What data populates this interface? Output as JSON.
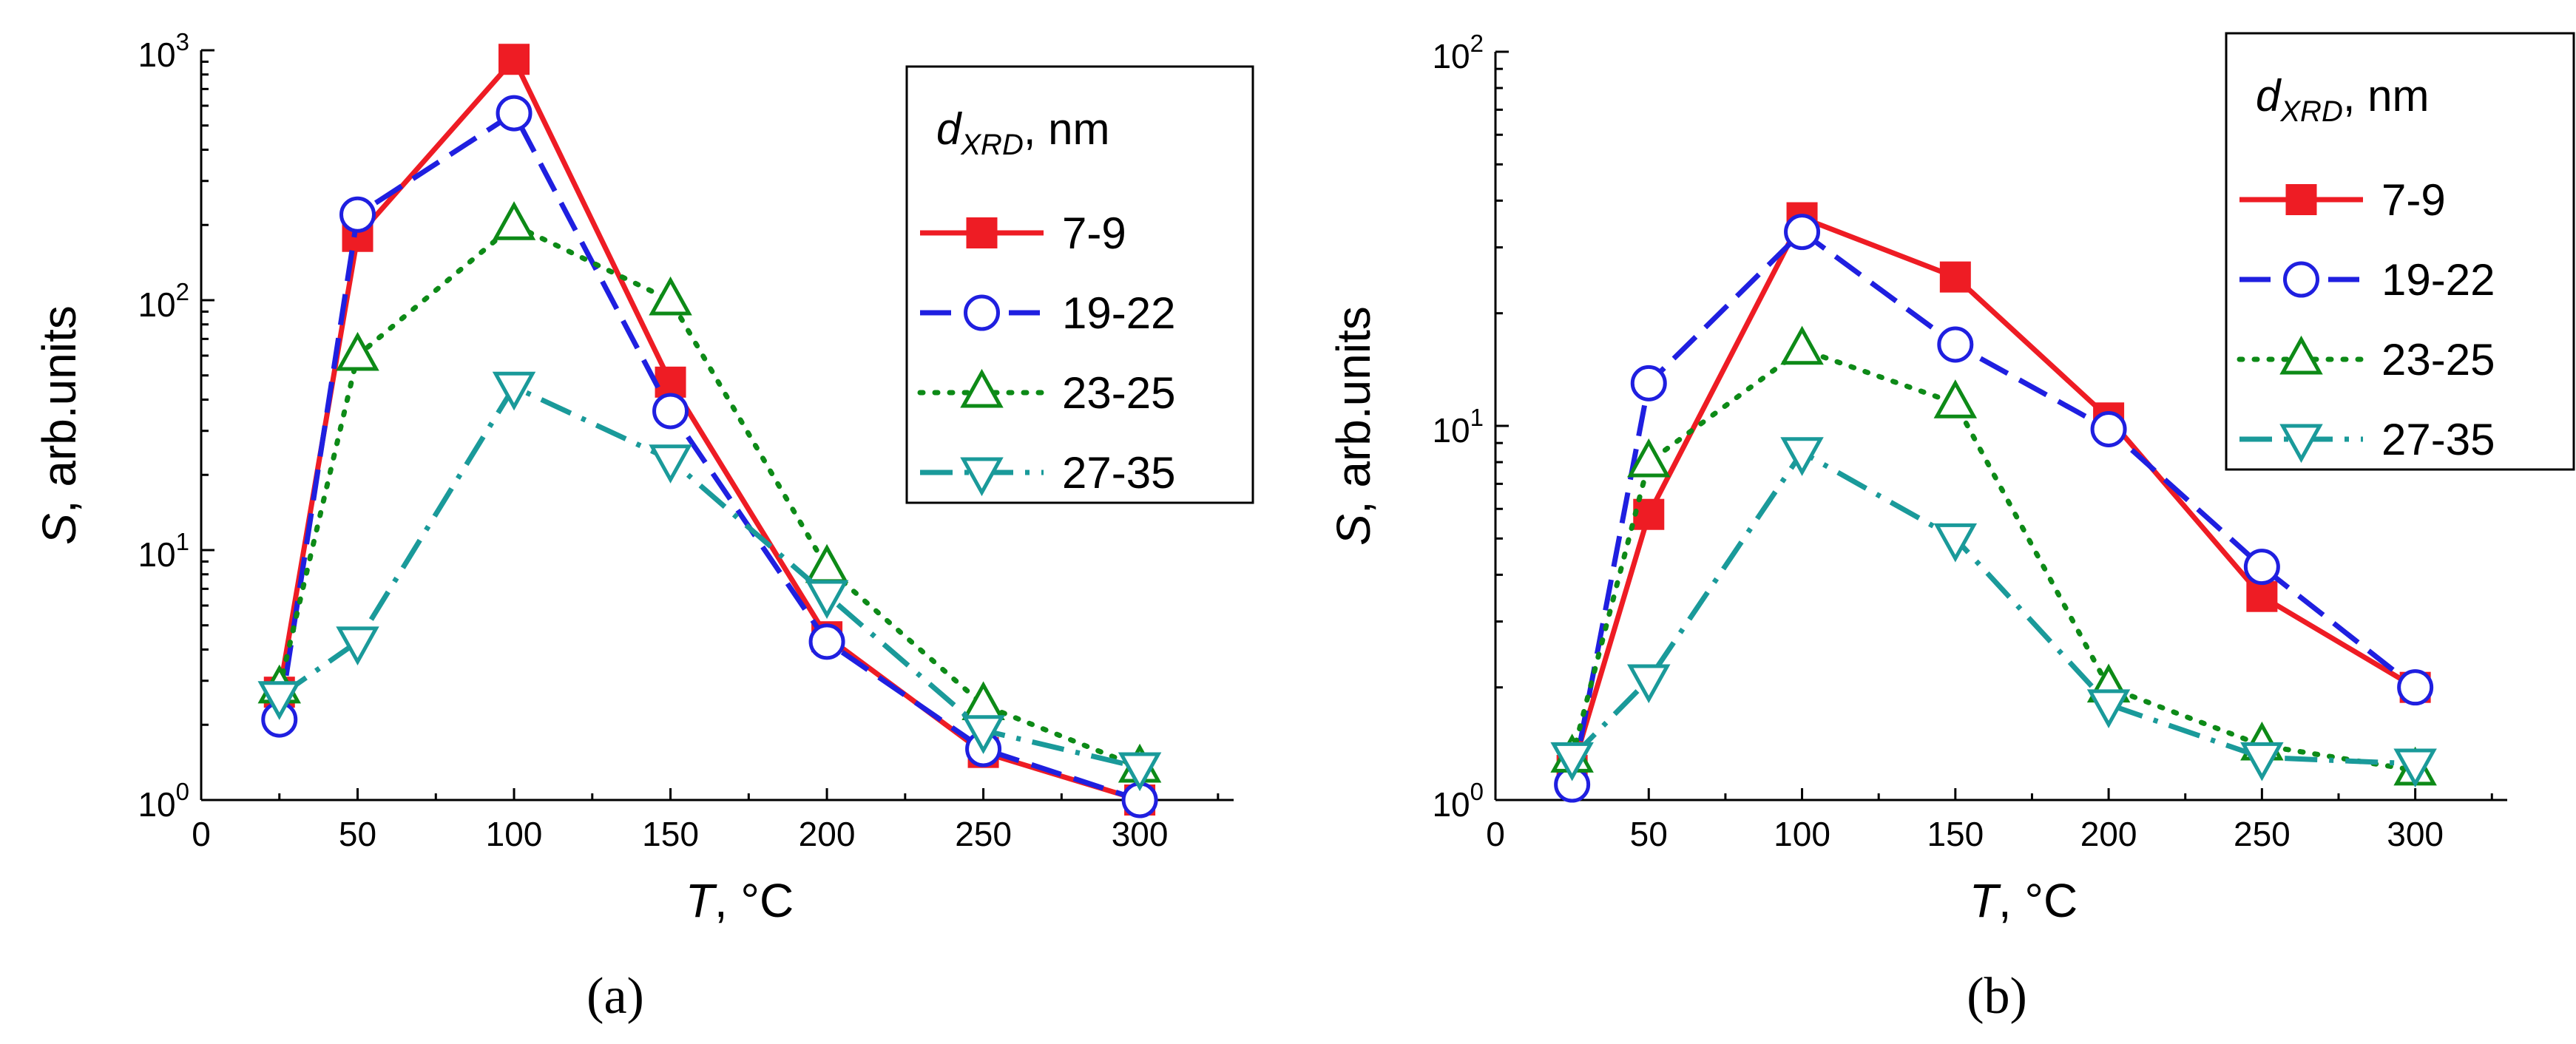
{
  "chart_data": [
    {
      "type": "line",
      "panel_label": "(a)",
      "x": [
        25,
        50,
        100,
        150,
        200,
        250,
        300
      ],
      "xlim": [
        0,
        330
      ],
      "xticks": [
        0,
        50,
        100,
        150,
        200,
        250,
        300
      ],
      "ylim": [
        1,
        1000
      ],
      "yscale": "log",
      "yticks": [
        {
          "value": 1,
          "base": "10",
          "exp": "0"
        },
        {
          "value": 10,
          "base": "10",
          "exp": "1"
        },
        {
          "value": 100,
          "base": "10",
          "exp": "2"
        },
        {
          "value": 1000,
          "base": "10",
          "exp": "3"
        }
      ],
      "xlabel": {
        "var": "T",
        "unit": ", °C"
      },
      "ylabel": {
        "var": "S",
        "unit": ", arb.units"
      },
      "legend": {
        "title_var": "d",
        "title_sub": "XRD",
        "title_unit": ", nm",
        "placement": "top-right"
      },
      "series": [
        {
          "name": "7-9",
          "color": "#ee1c24",
          "marker": "square",
          "dash": "solid",
          "values": [
            2.7,
            180,
            920,
            47,
            4.5,
            1.55,
            1.0
          ]
        },
        {
          "name": "19-22",
          "color": "#1f1fe0",
          "marker": "circle",
          "dash": "dash",
          "values": [
            2.1,
            220,
            560,
            36,
            4.3,
            1.6,
            1.0
          ]
        },
        {
          "name": "23-25",
          "color": "#0d8a17",
          "marker": "triangle-up",
          "dash": "dot",
          "values": [
            2.8,
            60,
            200,
            100,
            8.5,
            2.4,
            1.35
          ]
        },
        {
          "name": "27-35",
          "color": "#1a9a9a",
          "marker": "triangle-down",
          "dash": "dashdot",
          "values": [
            2.6,
            4.3,
            45,
            23,
            6.6,
            1.9,
            1.35
          ]
        }
      ]
    },
    {
      "type": "line",
      "panel_label": "(b)",
      "x": [
        25,
        50,
        100,
        150,
        200,
        250,
        300
      ],
      "xlim": [
        0,
        330
      ],
      "xticks": [
        0,
        50,
        100,
        150,
        200,
        250,
        300
      ],
      "ylim": [
        1,
        100
      ],
      "yscale": "log",
      "yticks": [
        {
          "value": 1,
          "base": "10",
          "exp": "0"
        },
        {
          "value": 10,
          "base": "10",
          "exp": "1"
        },
        {
          "value": 100,
          "base": "10",
          "exp": "2"
        }
      ],
      "xlabel": {
        "var": "T",
        "unit": ", °C"
      },
      "ylabel": {
        "var": "S",
        "unit": ", arb.units"
      },
      "legend": {
        "title_var": "d",
        "title_sub": "XRD",
        "title_unit": ", nm",
        "placement": "top-right"
      },
      "series": [
        {
          "name": "7-9",
          "color": "#ee1c24",
          "marker": "square",
          "dash": "solid",
          "values": [
            1.2,
            5.8,
            36,
            25,
            10.5,
            3.5,
            2.0
          ]
        },
        {
          "name": "19-22",
          "color": "#1f1fe0",
          "marker": "circle",
          "dash": "dash",
          "values": [
            1.1,
            13,
            33,
            16.5,
            9.8,
            4.2,
            2.0
          ]
        },
        {
          "name": "23-25",
          "color": "#0d8a17",
          "marker": "triangle-up",
          "dash": "dot",
          "values": [
            1.3,
            8.0,
            16,
            11.5,
            2.0,
            1.4,
            1.2
          ]
        },
        {
          "name": "27-35",
          "color": "#1a9a9a",
          "marker": "triangle-down",
          "dash": "dashdot",
          "values": [
            1.3,
            2.1,
            8.5,
            5.0,
            1.8,
            1.3,
            1.25
          ]
        }
      ]
    }
  ]
}
